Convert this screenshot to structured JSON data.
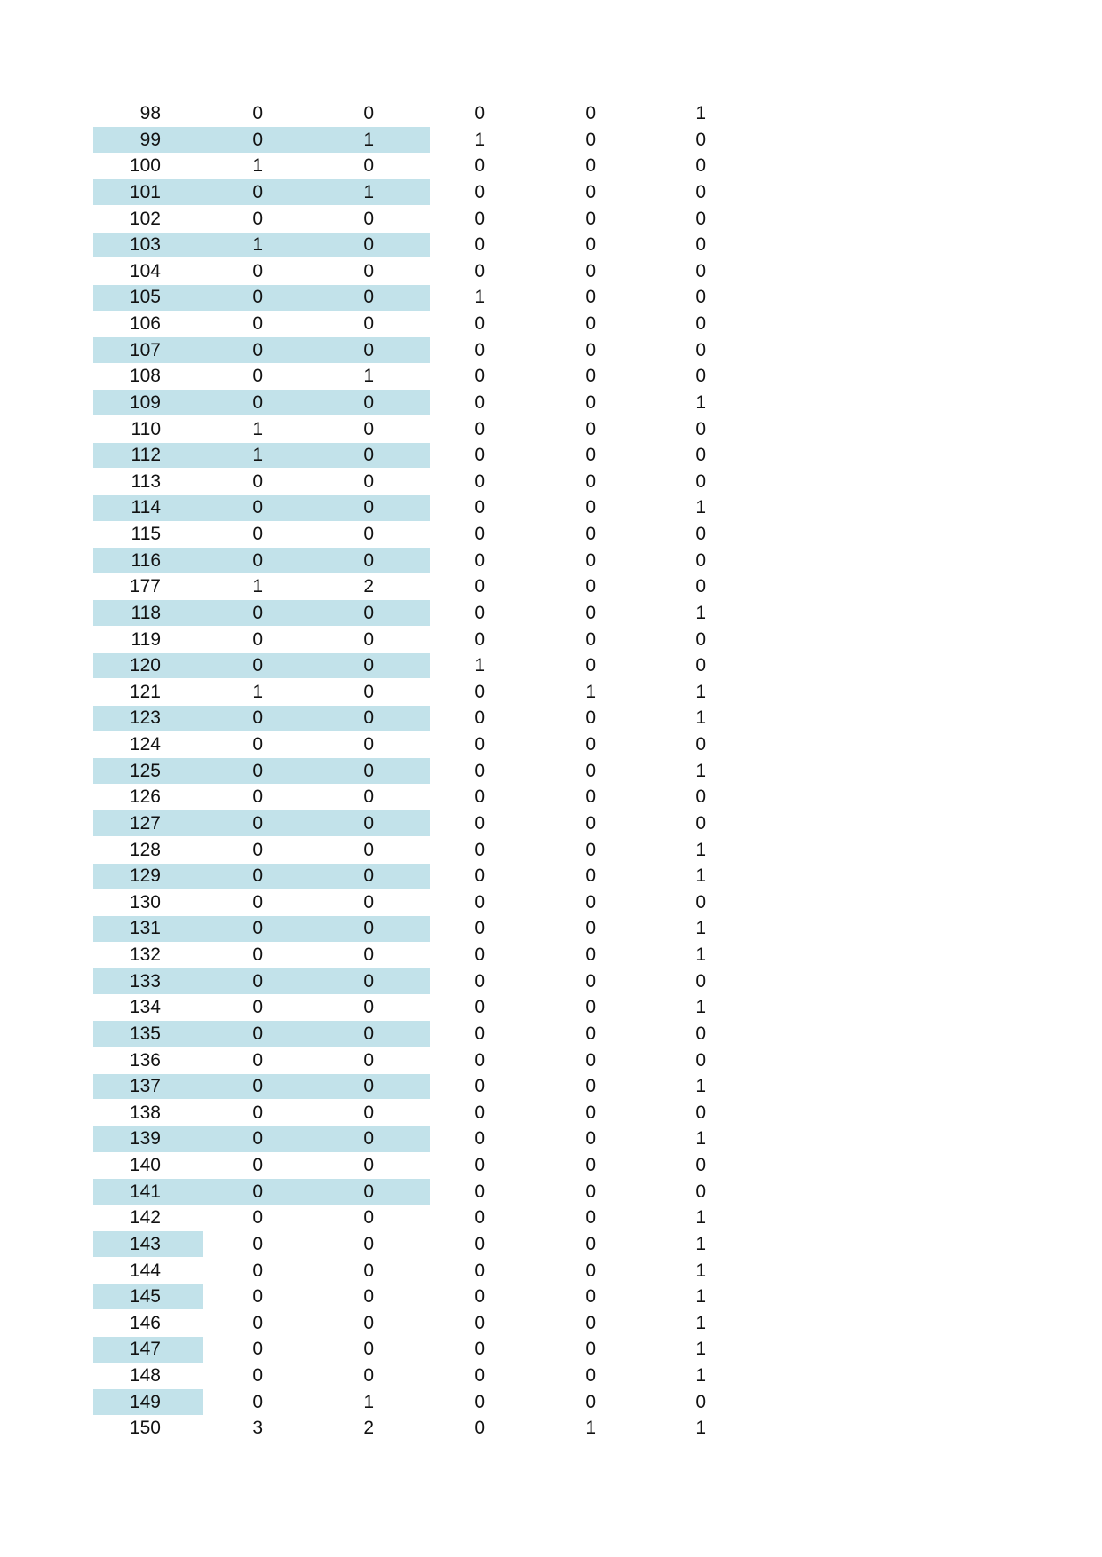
{
  "colors": {
    "page_background": "#ffffff",
    "row_highlight": "#c2e2ea",
    "text": "#121212"
  },
  "table": {
    "rows": [
      {
        "id": "98",
        "values": [
          "0",
          "0",
          "0",
          "0",
          "1"
        ],
        "highlight": "none"
      },
      {
        "id": "99",
        "values": [
          "0",
          "1",
          "1",
          "0",
          "0"
        ],
        "highlight": "long"
      },
      {
        "id": "100",
        "values": [
          "1",
          "0",
          "0",
          "0",
          "0"
        ],
        "highlight": "none"
      },
      {
        "id": "101",
        "values": [
          "0",
          "1",
          "0",
          "0",
          "0"
        ],
        "highlight": "long"
      },
      {
        "id": "102",
        "values": [
          "0",
          "0",
          "0",
          "0",
          "0"
        ],
        "highlight": "none"
      },
      {
        "id": "103",
        "values": [
          "1",
          "0",
          "0",
          "0",
          "0"
        ],
        "highlight": "long"
      },
      {
        "id": "104",
        "values": [
          "0",
          "0",
          "0",
          "0",
          "0"
        ],
        "highlight": "none"
      },
      {
        "id": "105",
        "values": [
          "0",
          "0",
          "1",
          "0",
          "0"
        ],
        "highlight": "long"
      },
      {
        "id": "106",
        "values": [
          "0",
          "0",
          "0",
          "0",
          "0"
        ],
        "highlight": "none"
      },
      {
        "id": "107",
        "values": [
          "0",
          "0",
          "0",
          "0",
          "0"
        ],
        "highlight": "long"
      },
      {
        "id": "108",
        "values": [
          "0",
          "1",
          "0",
          "0",
          "0"
        ],
        "highlight": "none"
      },
      {
        "id": "109",
        "values": [
          "0",
          "0",
          "0",
          "0",
          "1"
        ],
        "highlight": "long"
      },
      {
        "id": "110",
        "values": [
          "1",
          "0",
          "0",
          "0",
          "0"
        ],
        "highlight": "none"
      },
      {
        "id": "112",
        "values": [
          "1",
          "0",
          "0",
          "0",
          "0"
        ],
        "highlight": "long"
      },
      {
        "id": "113",
        "values": [
          "0",
          "0",
          "0",
          "0",
          "0"
        ],
        "highlight": "none"
      },
      {
        "id": "114",
        "values": [
          "0",
          "0",
          "0",
          "0",
          "1"
        ],
        "highlight": "long"
      },
      {
        "id": "115",
        "values": [
          "0",
          "0",
          "0",
          "0",
          "0"
        ],
        "highlight": "none"
      },
      {
        "id": "116",
        "values": [
          "0",
          "0",
          "0",
          "0",
          "0"
        ],
        "highlight": "long"
      },
      {
        "id": "177",
        "values": [
          "1",
          "2",
          "0",
          "0",
          "0"
        ],
        "highlight": "none"
      },
      {
        "id": "118",
        "values": [
          "0",
          "0",
          "0",
          "0",
          "1"
        ],
        "highlight": "long"
      },
      {
        "id": "119",
        "values": [
          "0",
          "0",
          "0",
          "0",
          "0"
        ],
        "highlight": "none"
      },
      {
        "id": "120",
        "values": [
          "0",
          "0",
          "1",
          "0",
          "0"
        ],
        "highlight": "long"
      },
      {
        "id": "121",
        "values": [
          "1",
          "0",
          "0",
          "1",
          "1"
        ],
        "highlight": "none"
      },
      {
        "id": "123",
        "values": [
          "0",
          "0",
          "0",
          "0",
          "1"
        ],
        "highlight": "long"
      },
      {
        "id": "124",
        "values": [
          "0",
          "0",
          "0",
          "0",
          "0"
        ],
        "highlight": "none"
      },
      {
        "id": "125",
        "values": [
          "0",
          "0",
          "0",
          "0",
          "1"
        ],
        "highlight": "long"
      },
      {
        "id": "126",
        "values": [
          "0",
          "0",
          "0",
          "0",
          "0"
        ],
        "highlight": "none"
      },
      {
        "id": "127",
        "values": [
          "0",
          "0",
          "0",
          "0",
          "0"
        ],
        "highlight": "long"
      },
      {
        "id": "128",
        "values": [
          "0",
          "0",
          "0",
          "0",
          "1"
        ],
        "highlight": "none"
      },
      {
        "id": "129",
        "values": [
          "0",
          "0",
          "0",
          "0",
          "1"
        ],
        "highlight": "long"
      },
      {
        "id": "130",
        "values": [
          "0",
          "0",
          "0",
          "0",
          "0"
        ],
        "highlight": "none"
      },
      {
        "id": "131",
        "values": [
          "0",
          "0",
          "0",
          "0",
          "1"
        ],
        "highlight": "long"
      },
      {
        "id": "132",
        "values": [
          "0",
          "0",
          "0",
          "0",
          "1"
        ],
        "highlight": "none"
      },
      {
        "id": "133",
        "values": [
          "0",
          "0",
          "0",
          "0",
          "0"
        ],
        "highlight": "long"
      },
      {
        "id": "134",
        "values": [
          "0",
          "0",
          "0",
          "0",
          "1"
        ],
        "highlight": "none"
      },
      {
        "id": "135",
        "values": [
          "0",
          "0",
          "0",
          "0",
          "0"
        ],
        "highlight": "long"
      },
      {
        "id": "136",
        "values": [
          "0",
          "0",
          "0",
          "0",
          "0"
        ],
        "highlight": "none"
      },
      {
        "id": "137",
        "values": [
          "0",
          "0",
          "0",
          "0",
          "1"
        ],
        "highlight": "long"
      },
      {
        "id": "138",
        "values": [
          "0",
          "0",
          "0",
          "0",
          "0"
        ],
        "highlight": "none"
      },
      {
        "id": "139",
        "values": [
          "0",
          "0",
          "0",
          "0",
          "1"
        ],
        "highlight": "long"
      },
      {
        "id": "140",
        "values": [
          "0",
          "0",
          "0",
          "0",
          "0"
        ],
        "highlight": "none"
      },
      {
        "id": "141",
        "values": [
          "0",
          "0",
          "0",
          "0",
          "0"
        ],
        "highlight": "long"
      },
      {
        "id": "142",
        "values": [
          "0",
          "0",
          "0",
          "0",
          "1"
        ],
        "highlight": "none"
      },
      {
        "id": "143",
        "values": [
          "0",
          "0",
          "0",
          "0",
          "1"
        ],
        "highlight": "short"
      },
      {
        "id": "144",
        "values": [
          "0",
          "0",
          "0",
          "0",
          "1"
        ],
        "highlight": "none"
      },
      {
        "id": "145",
        "values": [
          "0",
          "0",
          "0",
          "0",
          "1"
        ],
        "highlight": "short"
      },
      {
        "id": "146",
        "values": [
          "0",
          "0",
          "0",
          "0",
          "1"
        ],
        "highlight": "none"
      },
      {
        "id": "147",
        "values": [
          "0",
          "0",
          "0",
          "0",
          "1"
        ],
        "highlight": "short"
      },
      {
        "id": "148",
        "values": [
          "0",
          "0",
          "0",
          "0",
          "1"
        ],
        "highlight": "none"
      },
      {
        "id": "149",
        "values": [
          "0",
          "1",
          "0",
          "0",
          "0"
        ],
        "highlight": "short"
      },
      {
        "id": "150",
        "values": [
          "3",
          "2",
          "0",
          "1",
          "1"
        ],
        "highlight": "none"
      }
    ]
  }
}
